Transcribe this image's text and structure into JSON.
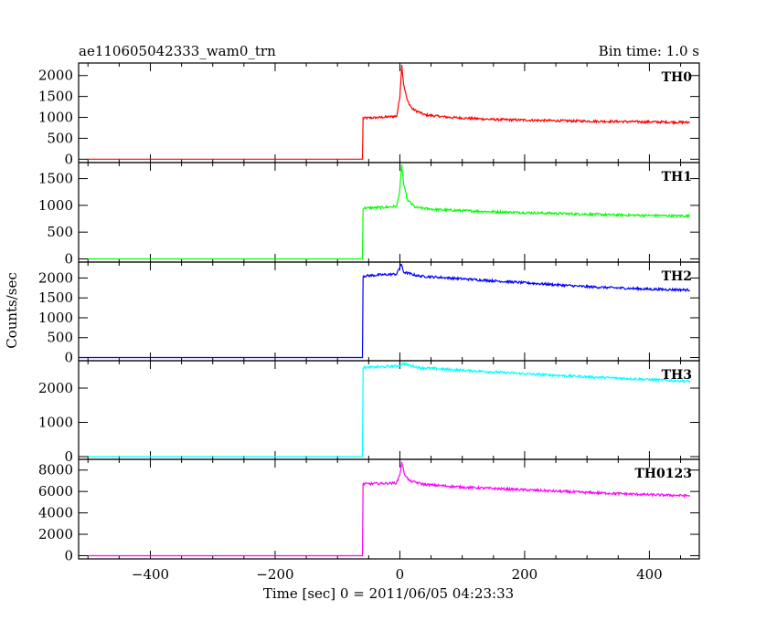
{
  "header": {
    "title": "ae110605042333_wam0_trn",
    "bin_time": "Bin time: 1.0 s"
  },
  "chart_data": {
    "type": "line",
    "xlabel": "Time [sec] 0 = 2011/06/05 04:23:33",
    "ylabel": "Counts/sec",
    "xlim": [
      -515,
      480
    ],
    "xticks": [
      -400,
      -200,
      0,
      200,
      400
    ],
    "panels": [
      {
        "name": "TH0",
        "color": "#ff0000",
        "ylim": [
          -80,
          2300
        ],
        "yticks": [
          0,
          500,
          1000,
          1500,
          2000
        ],
        "series": [
          {
            "x": -500,
            "y": 0
          },
          {
            "x": -60,
            "y": 0
          },
          {
            "x": -59,
            "y": 980
          },
          {
            "x": -30,
            "y": 1000
          },
          {
            "x": -5,
            "y": 1030
          },
          {
            "x": 0,
            "y": 1500
          },
          {
            "x": 3,
            "y": 2250
          },
          {
            "x": 6,
            "y": 1800
          },
          {
            "x": 12,
            "y": 1400
          },
          {
            "x": 20,
            "y": 1200
          },
          {
            "x": 40,
            "y": 1060
          },
          {
            "x": 80,
            "y": 1000
          },
          {
            "x": 150,
            "y": 950
          },
          {
            "x": 250,
            "y": 920
          },
          {
            "x": 350,
            "y": 900
          },
          {
            "x": 465,
            "y": 880
          }
        ]
      },
      {
        "name": "TH1",
        "color": "#00ff00",
        "ylim": [
          -60,
          1800
        ],
        "yticks": [
          0,
          500,
          1000,
          1500
        ],
        "series": [
          {
            "x": -500,
            "y": 0
          },
          {
            "x": -60,
            "y": 0
          },
          {
            "x": -59,
            "y": 950
          },
          {
            "x": -30,
            "y": 960
          },
          {
            "x": -5,
            "y": 980
          },
          {
            "x": 0,
            "y": 1300
          },
          {
            "x": 3,
            "y": 1750
          },
          {
            "x": 6,
            "y": 1400
          },
          {
            "x": 12,
            "y": 1100
          },
          {
            "x": 25,
            "y": 960
          },
          {
            "x": 60,
            "y": 920
          },
          {
            "x": 150,
            "y": 880
          },
          {
            "x": 250,
            "y": 850
          },
          {
            "x": 350,
            "y": 820
          },
          {
            "x": 465,
            "y": 800
          }
        ]
      },
      {
        "name": "TH2",
        "color": "#0000ff",
        "ylim": [
          -80,
          2400
        ],
        "yticks": [
          0,
          500,
          1000,
          1500,
          2000
        ],
        "series": [
          {
            "x": -515,
            "y": 0
          },
          {
            "x": -60,
            "y": 0
          },
          {
            "x": -59,
            "y": 2050
          },
          {
            "x": -30,
            "y": 2080
          },
          {
            "x": -5,
            "y": 2100
          },
          {
            "x": 2,
            "y": 2350
          },
          {
            "x": 6,
            "y": 2150
          },
          {
            "x": 30,
            "y": 2050
          },
          {
            "x": 100,
            "y": 1980
          },
          {
            "x": 200,
            "y": 1880
          },
          {
            "x": 300,
            "y": 1780
          },
          {
            "x": 400,
            "y": 1720
          },
          {
            "x": 465,
            "y": 1700
          }
        ]
      },
      {
        "name": "TH3",
        "color": "#00ffff",
        "ylim": [
          -80,
          2800
        ],
        "yticks": [
          0,
          1000,
          2000
        ],
        "series": [
          {
            "x": -500,
            "y": 0
          },
          {
            "x": -60,
            "y": 0
          },
          {
            "x": -59,
            "y": 2600
          },
          {
            "x": -30,
            "y": 2620
          },
          {
            "x": 0,
            "y": 2650
          },
          {
            "x": 5,
            "y": 2720
          },
          {
            "x": 30,
            "y": 2600
          },
          {
            "x": 100,
            "y": 2520
          },
          {
            "x": 200,
            "y": 2420
          },
          {
            "x": 300,
            "y": 2330
          },
          {
            "x": 400,
            "y": 2250
          },
          {
            "x": 465,
            "y": 2200
          }
        ]
      },
      {
        "name": "TH0123",
        "color": "#ff00ff",
        "ylim": [
          -300,
          9000
        ],
        "yticks": [
          0,
          2000,
          4000,
          6000,
          8000
        ],
        "series": [
          {
            "x": -500,
            "y": 0
          },
          {
            "x": -60,
            "y": 0
          },
          {
            "x": -59,
            "y": 6700
          },
          {
            "x": -30,
            "y": 6750
          },
          {
            "x": -5,
            "y": 6800
          },
          {
            "x": 0,
            "y": 7600
          },
          {
            "x": 3,
            "y": 8700
          },
          {
            "x": 7,
            "y": 7700
          },
          {
            "x": 15,
            "y": 7000
          },
          {
            "x": 40,
            "y": 6650
          },
          {
            "x": 100,
            "y": 6400
          },
          {
            "x": 200,
            "y": 6150
          },
          {
            "x": 300,
            "y": 5900
          },
          {
            "x": 400,
            "y": 5700
          },
          {
            "x": 465,
            "y": 5600
          }
        ]
      }
    ]
  }
}
